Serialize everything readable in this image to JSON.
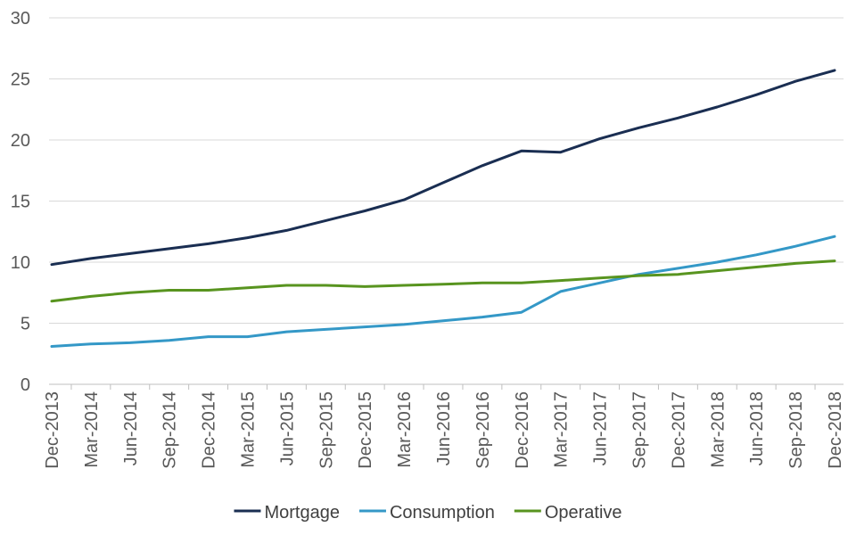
{
  "chart_data": {
    "type": "line",
    "title": "",
    "xlabel": "",
    "ylabel": "",
    "ylim": [
      0,
      30
    ],
    "yticks": [
      "0",
      "5",
      "10",
      "15",
      "20",
      "25",
      "30"
    ],
    "grid": "horizontal",
    "legend_position": "bottom",
    "categories": [
      "Dec-2013",
      "Mar-2014",
      "Jun-2014",
      "Sep-2014",
      "Dec-2014",
      "Mar-2015",
      "Jun-2015",
      "Sep-2015",
      "Dec-2015",
      "Mar-2016",
      "Jun-2016",
      "Sep-2016",
      "Dec-2016",
      "Mar-2017",
      "Jun-2017",
      "Sep-2017",
      "Dec-2017",
      "Mar-2018",
      "Jun-2018",
      "Sep-2018",
      "Dec-2018"
    ],
    "series": [
      {
        "name": "Mortgage",
        "color": "#1a2e52",
        "values": [
          9.8,
          10.3,
          10.7,
          11.1,
          11.5,
          12.0,
          12.6,
          13.4,
          14.2,
          15.1,
          16.5,
          17.9,
          19.1,
          19.0,
          20.1,
          21.0,
          21.8,
          22.7,
          23.7,
          24.8,
          25.7
        ]
      },
      {
        "name": "Consumption",
        "color": "#3498c7",
        "values": [
          3.1,
          3.3,
          3.4,
          3.6,
          3.9,
          3.9,
          4.3,
          4.5,
          4.7,
          4.9,
          5.2,
          5.5,
          5.9,
          7.6,
          8.3,
          9.0,
          9.5,
          10.0,
          10.6,
          11.3,
          12.1
        ]
      },
      {
        "name": "Operative",
        "color": "#58941f",
        "values": [
          6.8,
          7.2,
          7.5,
          7.7,
          7.7,
          7.9,
          8.1,
          8.1,
          8.0,
          8.1,
          8.2,
          8.3,
          8.3,
          8.5,
          8.7,
          8.9,
          9.0,
          9.3,
          9.6,
          9.9,
          10.1
        ]
      }
    ]
  }
}
